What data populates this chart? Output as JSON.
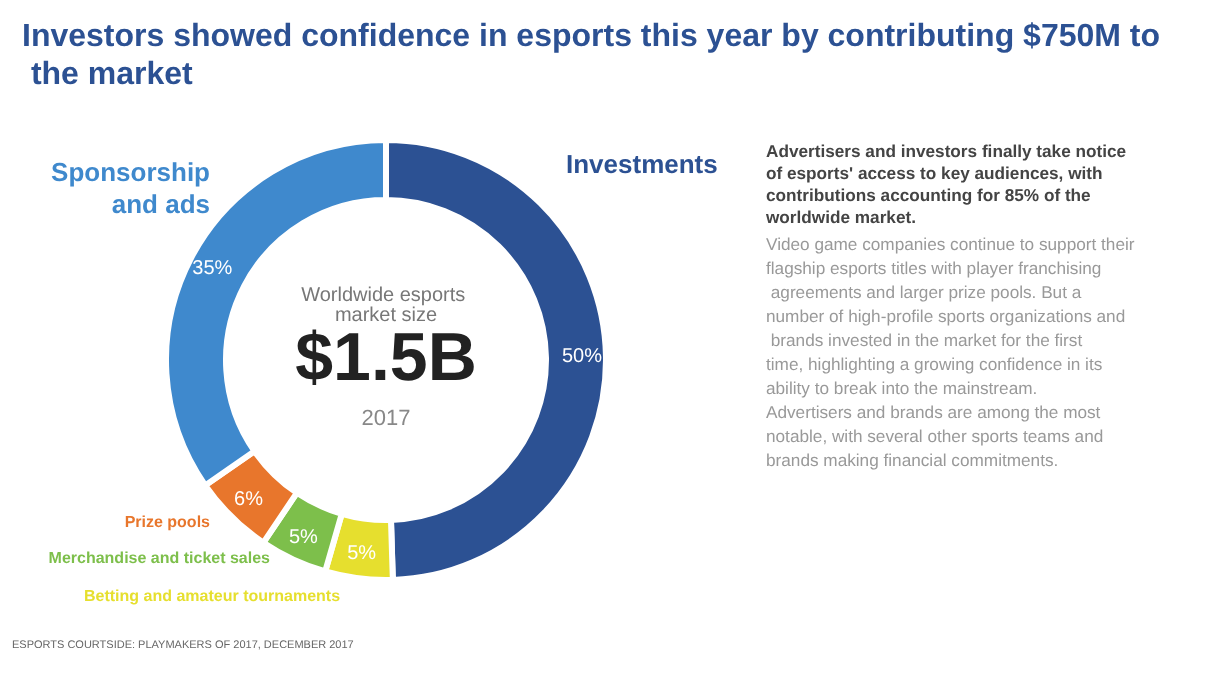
{
  "chart_data": {
    "type": "donut",
    "title": "Investors showed confidence in esports this year by contributing $750M to the market",
    "categories": [
      "Investments",
      "Betting and amateur tournaments",
      "Merchandise and ticket sales",
      "Prize pools",
      "Sponsorship and ads"
    ],
    "values": [
      50,
      5,
      5,
      6,
      35
    ],
    "value_labels": [
      "50%",
      "5%",
      "5%",
      "6%",
      "35%"
    ],
    "colors": [
      "#2c5193",
      "#e6df2e",
      "#7dbf4b",
      "#e8762c",
      "#3f89cd"
    ],
    "legend": false,
    "annotations": [
      "Worldwide esports market size",
      "$1.5B",
      "2017",
      "Advertisers and investors finally take notice of esports' access to key audiences, with contributions accounting for 85% of the worldwide market.",
      "Video game companies continue to support their flagship esports titles with player franchising agreements and larger prize pools. But a number of high-profile sports organizations and brands invested in the market for the first time, highlighting a growing confidence in its ability to break into the mainstream. Advertisers and brands are among the most notable, with several other sports teams and brands making financial commitments.",
      "ESPORTS COURTSIDE: PLAYMAKERS OF 2017, DECEMBER 2017"
    ]
  }
}
